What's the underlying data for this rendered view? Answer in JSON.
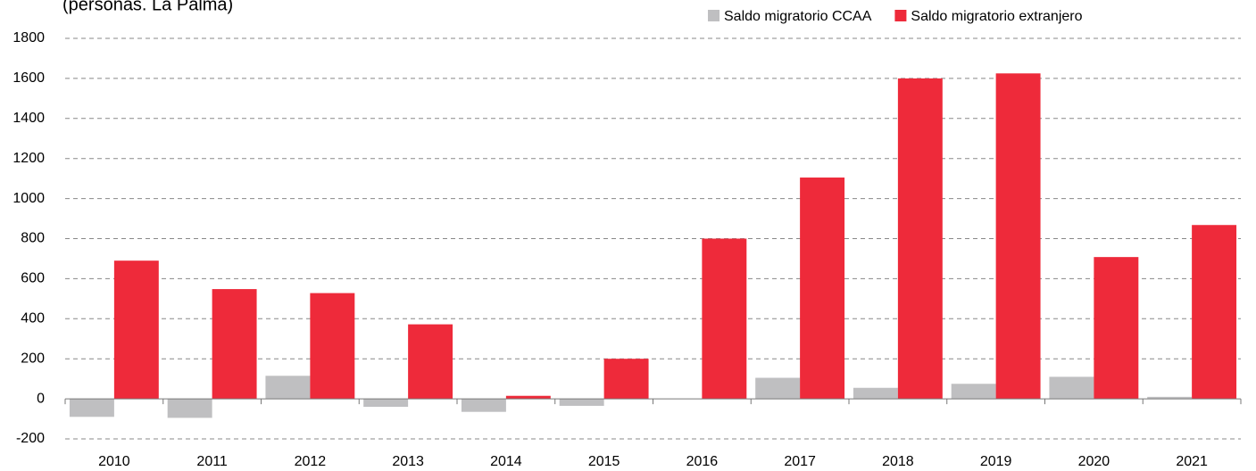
{
  "chart_data": {
    "type": "bar",
    "subtitle": "(personas. La Palma)",
    "categories": [
      "2010",
      "2011",
      "2012",
      "2013",
      "2014",
      "2015",
      "2016",
      "2017",
      "2018",
      "2019",
      "2020",
      "2021"
    ],
    "series": [
      {
        "name": "Saldo migratorio CCAA",
        "color": "#bfbfc1",
        "values": [
          -90,
          -95,
          115,
          -40,
          -65,
          -35,
          0,
          105,
          55,
          75,
          110,
          10
        ]
      },
      {
        "name": "Saldo migratorio extranjero",
        "color": "#ee2a3a",
        "values": [
          690,
          548,
          528,
          372,
          15,
          200,
          800,
          1105,
          1600,
          1625,
          708,
          868
        ]
      }
    ],
    "ylim": [
      -200,
      1800
    ],
    "yticks": [
      -200,
      0,
      200,
      400,
      600,
      800,
      1000,
      1200,
      1400,
      1600,
      1800
    ],
    "grid": true,
    "legend": "top-right"
  }
}
